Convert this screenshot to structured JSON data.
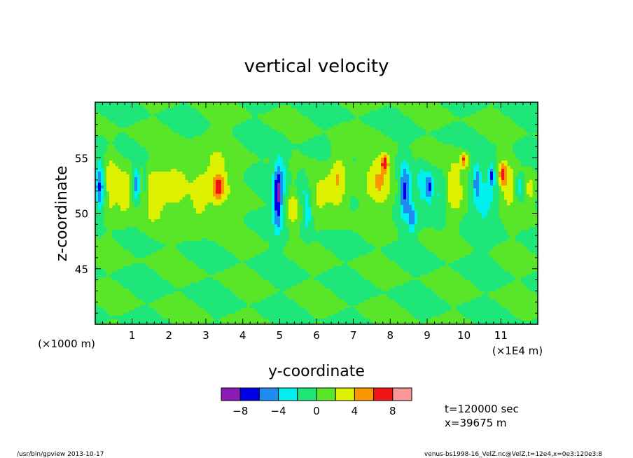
{
  "footer": {
    "left": "/usr/bin/gpview   2013-10-17",
    "right": "venus-bs1998-16_VelZ.nc@VelZ,t=12e4,x=0e3:120e3:8"
  },
  "info": {
    "time": "t=120000 sec",
    "position": "x=39675 m"
  },
  "chart_data": {
    "type": "heatmap",
    "title": "vertical velocity",
    "xlabel": "y-coordinate",
    "ylabel": "z-coordinate",
    "x_scale_note": "(×1E4 m)",
    "y_scale_note": "(×1000 m)",
    "xlim": [
      0,
      12
    ],
    "ylim": [
      40,
      60
    ],
    "x_ticks": [
      1,
      2,
      3,
      4,
      5,
      6,
      7,
      8,
      9,
      10,
      11
    ],
    "x_tick_labels": [
      "1",
      "2",
      "3",
      "4",
      "5",
      "6",
      "7",
      "8",
      "9",
      "10",
      "11"
    ],
    "y_ticks": [
      45,
      50,
      55
    ],
    "y_tick_labels": [
      "45",
      "50",
      "55"
    ],
    "colorbar": {
      "levels": [
        -10,
        -8,
        -6,
        -4,
        -2,
        0,
        2,
        4,
        6,
        8,
        10
      ],
      "colors": [
        "#8c1ab4",
        "#0000e6",
        "#1e8cf0",
        "#00f0f0",
        "#1ee678",
        "#5ae628",
        "#dcf000",
        "#fa9600",
        "#f01414",
        "#fa9696"
      ],
      "tick_values": [
        -8,
        -4,
        0,
        4,
        8
      ],
      "tick_labels": [
        "−8",
        "−4",
        "0",
        "4",
        "8"
      ]
    },
    "features": [
      {
        "y": 0.12,
        "z": 52.5,
        "amp": -6.5,
        "sy": 0.12,
        "sz": 2.4
      },
      {
        "y": 0.45,
        "z": 52.8,
        "amp": 3.5,
        "sy": 0.2,
        "sz": 2.5
      },
      {
        "y": 0.8,
        "z": 52.0,
        "amp": 3.6,
        "sy": 0.18,
        "sz": 2.2
      },
      {
        "y": 1.12,
        "z": 52.6,
        "amp": -6.0,
        "sy": 0.09,
        "sz": 1.6
      },
      {
        "y": 1.35,
        "z": 52.5,
        "amp": -2.6,
        "sy": 0.1,
        "sz": 2.0
      },
      {
        "y": 1.5,
        "z": 51.5,
        "amp": 3.2,
        "sy": 0.4,
        "sz": 2.6
      },
      {
        "y": 2.2,
        "z": 52.5,
        "amp": 3.0,
        "sy": 0.35,
        "sz": 2.2
      },
      {
        "y": 3.35,
        "z": 52.4,
        "amp": 5.0,
        "sy": 0.13,
        "sz": 1.1
      },
      {
        "y": 3.2,
        "z": 53.0,
        "amp": 3.0,
        "sy": 0.5,
        "sz": 3.0
      },
      {
        "y": 2.8,
        "z": 51.0,
        "amp": 2.6,
        "sy": 0.22,
        "sz": 2.0
      },
      {
        "y": 4.95,
        "z": 51.5,
        "amp": -8.5,
        "sy": 0.12,
        "sz": 2.8
      },
      {
        "y": 5.1,
        "z": 53.5,
        "amp": -2.5,
        "sy": 0.15,
        "sz": 2.2
      },
      {
        "y": 5.35,
        "z": 50.5,
        "amp": 3.2,
        "sy": 0.15,
        "sz": 1.6
      },
      {
        "y": 5.75,
        "z": 50.2,
        "amp": -4.5,
        "sy": 0.12,
        "sz": 1.8
      },
      {
        "y": 5.6,
        "z": 52.5,
        "amp": -2.2,
        "sy": 0.15,
        "sz": 1.5
      },
      {
        "y": 6.15,
        "z": 51.8,
        "amp": 2.8,
        "sy": 0.4,
        "sz": 2.0
      },
      {
        "y": 6.6,
        "z": 53.0,
        "amp": 3.6,
        "sy": 0.22,
        "sz": 2.8
      },
      {
        "y": 7.7,
        "z": 53.0,
        "amp": 4.0,
        "sy": 0.35,
        "sz": 2.5
      },
      {
        "y": 7.85,
        "z": 54.5,
        "amp": 6.0,
        "sy": 0.1,
        "sz": 0.8
      },
      {
        "y": 8.4,
        "z": 52.0,
        "amp": -6.5,
        "sy": 0.15,
        "sz": 2.4
      },
      {
        "y": 8.6,
        "z": 49.5,
        "amp": -4.5,
        "sy": 0.1,
        "sz": 1.4
      },
      {
        "y": 8.85,
        "z": 52.5,
        "amp": -3.5,
        "sy": 0.12,
        "sz": 1.8
      },
      {
        "y": 9.05,
        "z": 52.3,
        "amp": -6.8,
        "sy": 0.1,
        "sz": 1.4
      },
      {
        "y": 9.35,
        "z": 51.5,
        "amp": -3.2,
        "sy": 0.18,
        "sz": 2.0
      },
      {
        "y": 9.75,
        "z": 52.5,
        "amp": 3.5,
        "sy": 0.3,
        "sz": 2.5
      },
      {
        "y": 10.0,
        "z": 54.8,
        "amp": 5.6,
        "sy": 0.09,
        "sz": 0.6
      },
      {
        "y": 10.35,
        "z": 53.0,
        "amp": -4.0,
        "sy": 0.1,
        "sz": 1.8
      },
      {
        "y": 10.75,
        "z": 53.5,
        "amp": -6.0,
        "sy": 0.08,
        "sz": 1.0
      },
      {
        "y": 11.05,
        "z": 53.5,
        "amp": 5.2,
        "sy": 0.1,
        "sz": 1.1
      },
      {
        "y": 11.2,
        "z": 52.3,
        "amp": 3.0,
        "sy": 0.25,
        "sz": 2.2
      },
      {
        "y": 11.5,
        "z": 52.5,
        "amp": -4.2,
        "sy": 0.1,
        "sz": 1.0
      },
      {
        "y": 11.8,
        "z": 52.0,
        "amp": 3.0,
        "sy": 0.15,
        "sz": 1.5
      },
      {
        "y": 10.6,
        "z": 51.0,
        "amp": -2.6,
        "sy": 0.4,
        "sz": 2.5
      }
    ]
  }
}
